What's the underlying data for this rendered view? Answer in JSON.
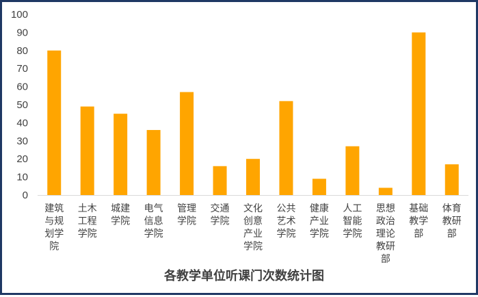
{
  "chart_data": {
    "type": "bar",
    "title": "各教学单位听课门次数统计图",
    "xlabel": "",
    "ylabel": "",
    "ylim": [
      0,
      100
    ],
    "yticks": [
      0,
      10,
      20,
      30,
      40,
      50,
      60,
      70,
      80,
      90,
      100
    ],
    "grid": false,
    "legend": "none",
    "bar_color": "#FFA500",
    "categories": [
      [
        "建筑",
        "与规",
        "划学",
        "院"
      ],
      [
        "土木",
        "工程",
        "学院"
      ],
      [
        "城建",
        "学院"
      ],
      [
        "电气",
        "信息",
        "学院"
      ],
      [
        "管理",
        "学院"
      ],
      [
        "交通",
        "学院"
      ],
      [
        "文化",
        "创意",
        "产业",
        "学院"
      ],
      [
        "公共",
        "艺术",
        "学院"
      ],
      [
        "健康",
        "产业",
        "学院"
      ],
      [
        "人工",
        "智能",
        "学院"
      ],
      [
        "思想",
        "政治",
        "理论",
        "教研",
        "部"
      ],
      [
        "基础",
        "教学",
        "部"
      ],
      [
        "体育",
        "教研",
        "部"
      ]
    ],
    "values": [
      80,
      49,
      45,
      36,
      57,
      16,
      20,
      52,
      9,
      27,
      4,
      90,
      17
    ]
  }
}
